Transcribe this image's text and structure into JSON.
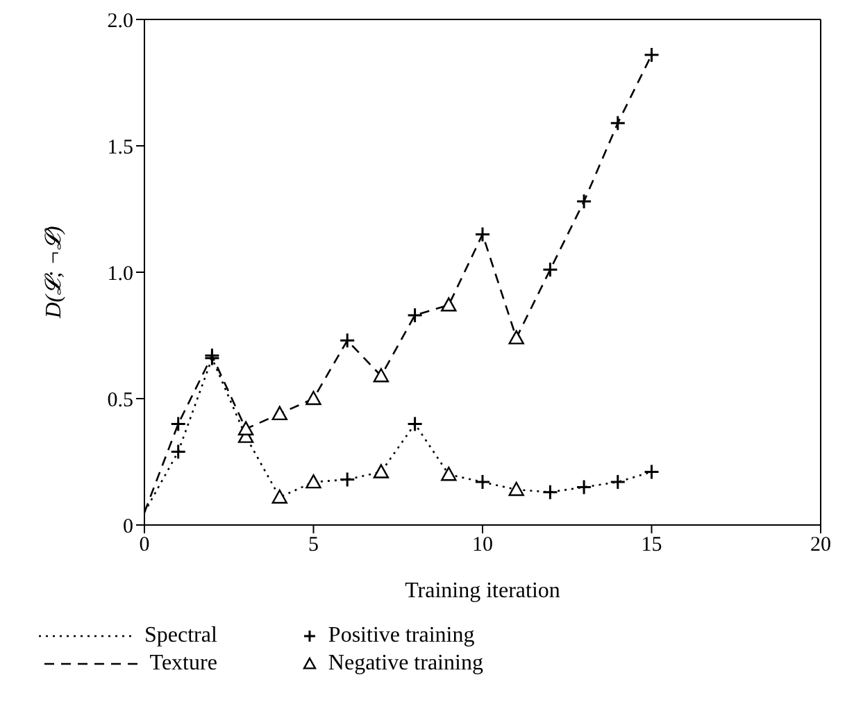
{
  "chart_data": {
    "type": "line",
    "xlabel": "Training iteration",
    "ylabel": "D(𝓛; ¬𝓛)",
    "xlim": [
      0,
      20
    ],
    "xticks": [
      0,
      5,
      10,
      15,
      20
    ],
    "ylim": [
      0,
      2
    ],
    "yticks": [
      0,
      0.5,
      {
        "value": 1,
        "label": "1.0"
      },
      1.5,
      {
        "value": 2,
        "label": "2.0"
      }
    ],
    "grid": false,
    "legend": "bottom",
    "series": [
      {
        "name": "Spectral",
        "line_style": "dotted",
        "marker": "none",
        "color": "#000000",
        "x": [
          0,
          1,
          2,
          3,
          4,
          5,
          6,
          7,
          8,
          9,
          10,
          11,
          12,
          13,
          14,
          15
        ],
        "values": [
          0.05,
          0.29,
          0.66,
          0.35,
          0.11,
          0.17,
          0.18,
          0.21,
          0.4,
          0.2,
          0.17,
          0.14,
          0.13,
          0.15,
          0.17,
          0.21
        ]
      },
      {
        "name": "Texture",
        "line_style": "dashed",
        "marker": "none",
        "color": "#000000",
        "x": [
          0,
          1,
          2,
          3,
          4,
          5,
          6,
          7,
          8,
          9,
          10,
          11,
          12,
          13,
          14,
          15
        ],
        "values": [
          0.05,
          0.4,
          0.67,
          0.38,
          0.44,
          0.5,
          0.73,
          0.59,
          0.83,
          0.87,
          1.15,
          0.74,
          1.01,
          1.28,
          1.59,
          1.86
        ]
      },
      {
        "name": "Positive training",
        "type": "scatter",
        "marker": "cross",
        "color": "#000000",
        "x": [
          1,
          2,
          6,
          8,
          10,
          12,
          13,
          14,
          15,
          1,
          2,
          6,
          8,
          10,
          12,
          13,
          14,
          15
        ],
        "values": [
          0.29,
          0.66,
          0.18,
          0.4,
          0.17,
          0.13,
          0.15,
          0.17,
          0.21,
          0.4,
          0.67,
          0.73,
          0.83,
          1.15,
          1.01,
          1.28,
          1.59,
          1.86
        ]
      },
      {
        "name": "Negative training",
        "type": "scatter",
        "marker": "triangle",
        "color": "#000000",
        "x": [
          3,
          4,
          5,
          7,
          9,
          11,
          3,
          4,
          5,
          7,
          9,
          11
        ],
        "values": [
          0.35,
          0.11,
          0.17,
          0.21,
          0.2,
          0.14,
          0.38,
          0.44,
          0.5,
          0.59,
          0.87,
          0.74
        ]
      }
    ]
  }
}
